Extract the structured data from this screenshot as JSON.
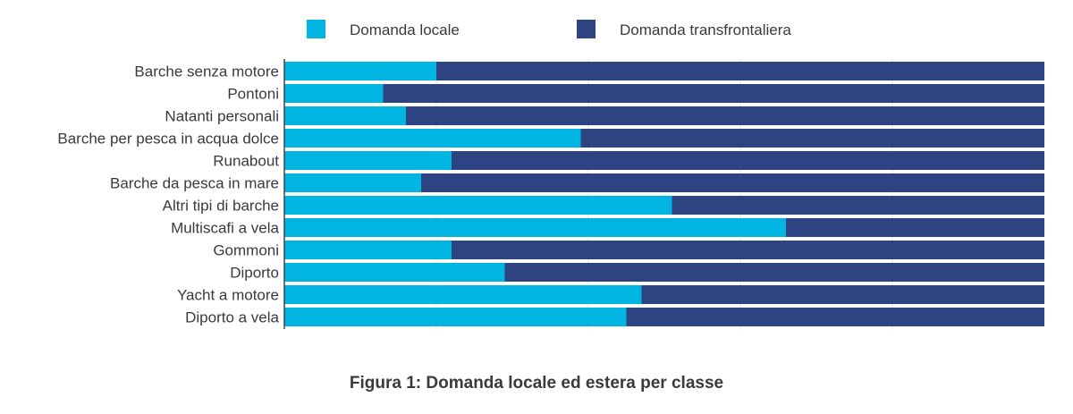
{
  "chart_data": {
    "type": "bar",
    "orientation": "horizontal",
    "stacked": true,
    "percent": true,
    "categories": [
      "Barche senza motore",
      "Pontoni",
      "Natanti personali",
      "Barche per pesca in acqua dolce",
      "Runabout",
      "Barche da pesca in mare",
      "Altri tipi di barche",
      "Multiscafi a vela",
      "Gommoni",
      "Diporto",
      "Yacht a motore",
      "Diporto a vela"
    ],
    "series": [
      {
        "name": "Domanda locale",
        "color": "#00b5e2",
        "values": [
          20,
          13,
          16,
          39,
          22,
          18,
          51,
          66,
          22,
          29,
          47,
          45
        ]
      },
      {
        "name": "Domanda transfrontaliera",
        "color": "#2e4482",
        "values": [
          80,
          87,
          84,
          61,
          78,
          82,
          49,
          34,
          78,
          71,
          53,
          55
        ]
      }
    ],
    "xlim": [
      0,
      100
    ],
    "grid": true,
    "legend_position": "top"
  },
  "caption": "Figura 1: Domanda locale ed estera per classe"
}
